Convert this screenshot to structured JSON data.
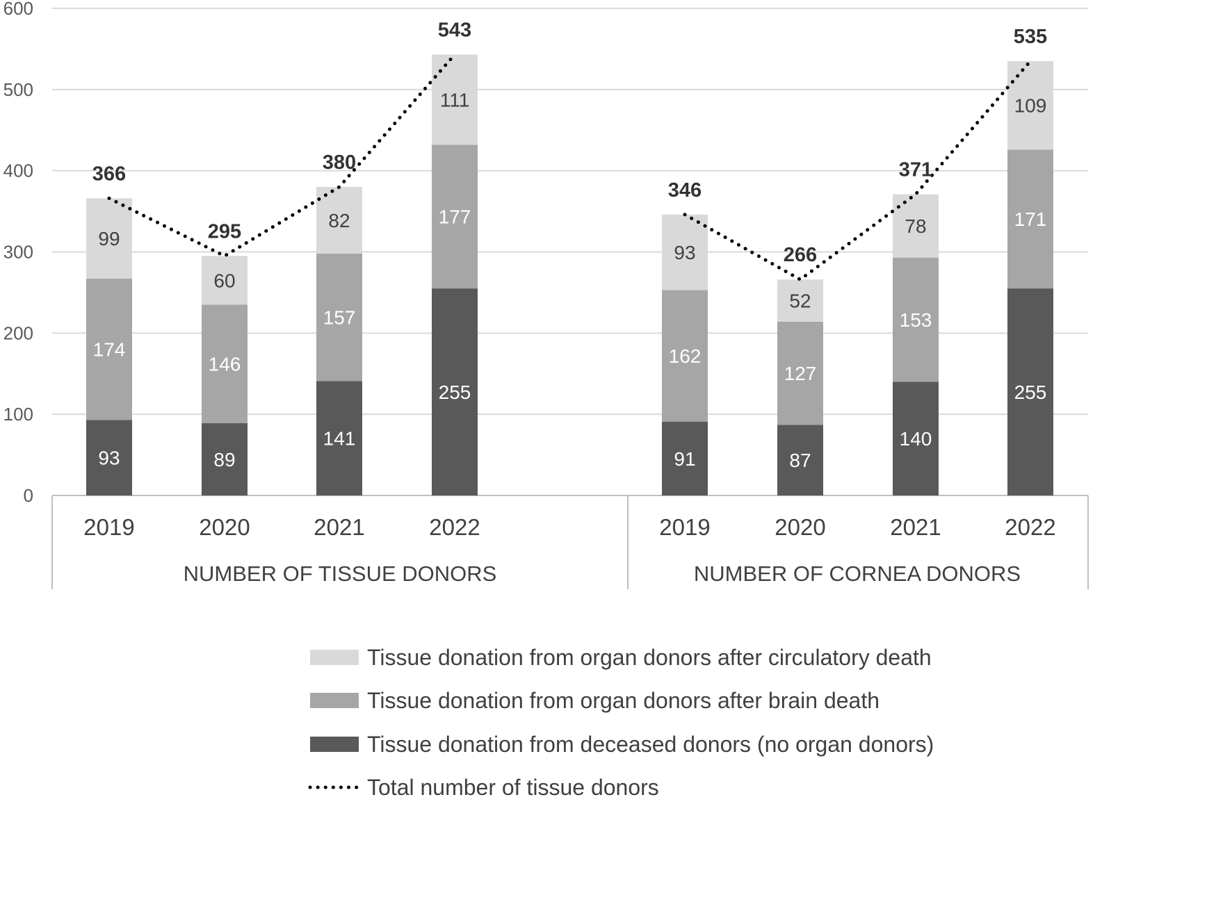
{
  "chart_data": {
    "type": "bar",
    "stacked": true,
    "ylim": [
      0,
      600
    ],
    "yticks": [
      0,
      100,
      200,
      300,
      400,
      500,
      600
    ],
    "grid": true,
    "legend_position": "bottom",
    "groups": [
      {
        "label": "NUMBER OF TISSUE DONORS",
        "categories": [
          "2019",
          "2020",
          "2021",
          "2022"
        ],
        "totals": [
          366,
          295,
          380,
          543
        ],
        "stacks": {
          "deceased": [
            93,
            89,
            141,
            255
          ],
          "brain": [
            174,
            146,
            157,
            177
          ],
          "circulatory": [
            99,
            60,
            82,
            111
          ]
        }
      },
      {
        "label": "NUMBER OF CORNEA DONORS",
        "categories": [
          "2019",
          "2020",
          "2021",
          "2022"
        ],
        "totals": [
          346,
          266,
          371,
          535
        ],
        "stacks": {
          "deceased": [
            91,
            87,
            140,
            255
          ],
          "brain": [
            162,
            127,
            153,
            171
          ],
          "circulatory": [
            93,
            52,
            78,
            109
          ]
        }
      }
    ],
    "series": [
      {
        "key": "circulatory",
        "name": "Tissue donation from organ donors after circulatory death",
        "color": "#d9d9d9",
        "label_color": "#404040"
      },
      {
        "key": "brain",
        "name": "Tissue donation from organ donors after brain death",
        "color": "#a6a6a6",
        "label_color": "#ffffff"
      },
      {
        "key": "deceased",
        "name": "Tissue donation from deceased donors (no organ donors)",
        "color": "#595959",
        "label_color": "#ffffff"
      }
    ],
    "line_series": {
      "name": "Total number of tissue donors",
      "color": "#000000",
      "style": "dotted"
    },
    "colors": {
      "grid": "#d9d9d9",
      "axis": "#bfbfbf"
    }
  }
}
